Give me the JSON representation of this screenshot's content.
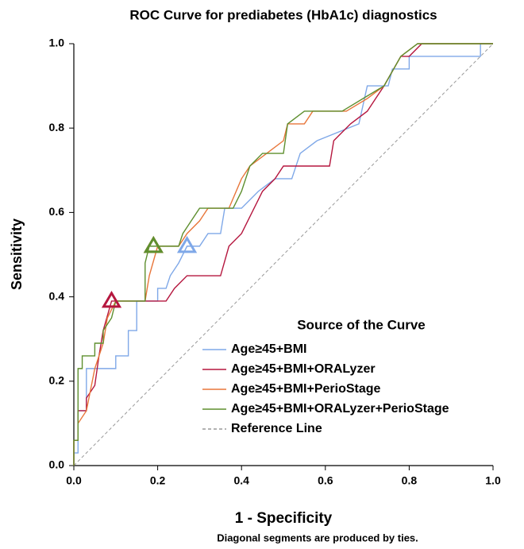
{
  "chart_data": {
    "type": "roc",
    "title": "ROC Curve for prediabetes (HbA1c) diagnostics",
    "x_label": "1 - Specificity",
    "y_label": "Sensitivity",
    "legend_title": "Source of the Curve",
    "footnote": "Diagonal segments are produced by ties.",
    "xlim": [
      0,
      1
    ],
    "ylim": [
      0,
      1
    ],
    "xticks": [
      {
        "value": 0,
        "label": "0.0"
      },
      0.2,
      0.4,
      0.6,
      0.8,
      {
        "value": 1,
        "label": "1.0"
      }
    ],
    "yticks": [
      {
        "value": 0,
        "label": "0.0"
      },
      0.2,
      0.4,
      0.6,
      0.8,
      {
        "value": 1,
        "label": "1.0"
      }
    ],
    "series": [
      {
        "name": "Age≥45+BMI",
        "color": "#7fa8e8",
        "x": [
          0,
          0,
          0.01,
          0.01,
          0.03,
          0.03,
          0.1,
          0.1,
          0.13,
          0.13,
          0.15,
          0.15,
          0.2,
          0.2,
          0.22,
          0.23,
          0.25,
          0.27,
          0.3,
          0.32,
          0.35,
          0.36,
          0.4,
          0.44,
          0.48,
          0.52,
          0.54,
          0.58,
          0.68,
          0.7,
          0.75,
          0.76,
          0.8,
          0.8,
          0.97,
          0.97,
          1
        ],
        "values": [
          0,
          0.03,
          0.03,
          0.13,
          0.13,
          0.23,
          0.23,
          0.26,
          0.26,
          0.32,
          0.32,
          0.39,
          0.39,
          0.42,
          0.42,
          0.45,
          0.48,
          0.52,
          0.52,
          0.55,
          0.55,
          0.61,
          0.61,
          0.65,
          0.68,
          0.68,
          0.74,
          0.77,
          0.81,
          0.9,
          0.9,
          0.94,
          0.94,
          0.97,
          0.97,
          1,
          1
        ],
        "cutoff_x": 0.27,
        "cutoff_y": 0.52
      },
      {
        "name": "Age≥45+BMI+ORALyzer",
        "color": "#b5173f",
        "x": [
          0,
          0,
          0.01,
          0.01,
          0.03,
          0.03,
          0.05,
          0.06,
          0.07,
          0.09,
          0.22,
          0.24,
          0.27,
          0.35,
          0.37,
          0.4,
          0.43,
          0.45,
          0.48,
          0.5,
          0.61,
          0.62,
          0.66,
          0.7,
          0.72,
          0.74,
          0.78,
          0.8,
          0.83,
          1
        ],
        "values": [
          0,
          0.06,
          0.06,
          0.13,
          0.13,
          0.16,
          0.19,
          0.26,
          0.32,
          0.39,
          0.39,
          0.42,
          0.45,
          0.45,
          0.52,
          0.55,
          0.61,
          0.65,
          0.68,
          0.71,
          0.71,
          0.77,
          0.81,
          0.84,
          0.87,
          0.9,
          0.97,
          0.97,
          1,
          1
        ],
        "cutoff_x": 0.09,
        "cutoff_y": 0.39
      },
      {
        "name": "Age≥45+BMI+PerioStage",
        "color": "#e8763a",
        "x": [
          0,
          0,
          0.01,
          0.01,
          0.03,
          0.05,
          0.07,
          0.08,
          0.1,
          0.17,
          0.18,
          0.2,
          0.25,
          0.27,
          0.3,
          0.32,
          0.37,
          0.4,
          0.42,
          0.46,
          0.5,
          0.51,
          0.55,
          0.57,
          0.65,
          0.7,
          0.74,
          0.78,
          0.82,
          1
        ],
        "values": [
          0,
          0.06,
          0.06,
          0.1,
          0.13,
          0.23,
          0.29,
          0.35,
          0.39,
          0.39,
          0.45,
          0.52,
          0.52,
          0.55,
          0.58,
          0.61,
          0.61,
          0.68,
          0.71,
          0.74,
          0.77,
          0.81,
          0.81,
          0.84,
          0.84,
          0.87,
          0.9,
          0.97,
          1,
          1
        ],
        "cutoff_x": 0.19,
        "cutoff_y": 0.52
      },
      {
        "name": "Age≥45+BMI+ORALyzer+PerioStage",
        "color": "#5e8f2f",
        "x": [
          0,
          0,
          0.01,
          0.01,
          0.02,
          0.02,
          0.05,
          0.05,
          0.07,
          0.07,
          0.09,
          0.1,
          0.17,
          0.17,
          0.18,
          0.25,
          0.26,
          0.28,
          0.3,
          0.38,
          0.4,
          0.42,
          0.45,
          0.5,
          0.51,
          0.55,
          0.64,
          0.69,
          0.74,
          0.78,
          0.82,
          1
        ],
        "values": [
          0,
          0.06,
          0.06,
          0.23,
          0.23,
          0.26,
          0.26,
          0.29,
          0.29,
          0.32,
          0.35,
          0.39,
          0.39,
          0.48,
          0.52,
          0.52,
          0.55,
          0.58,
          0.61,
          0.61,
          0.65,
          0.71,
          0.74,
          0.74,
          0.81,
          0.84,
          0.84,
          0.87,
          0.9,
          0.97,
          1,
          1
        ],
        "cutoff_x": 0.19,
        "cutoff_y": 0.52
      },
      {
        "name": "Reference Line",
        "color": "#999999",
        "dashed": true,
        "x": [
          0,
          1
        ],
        "values": [
          0,
          1
        ]
      }
    ]
  }
}
